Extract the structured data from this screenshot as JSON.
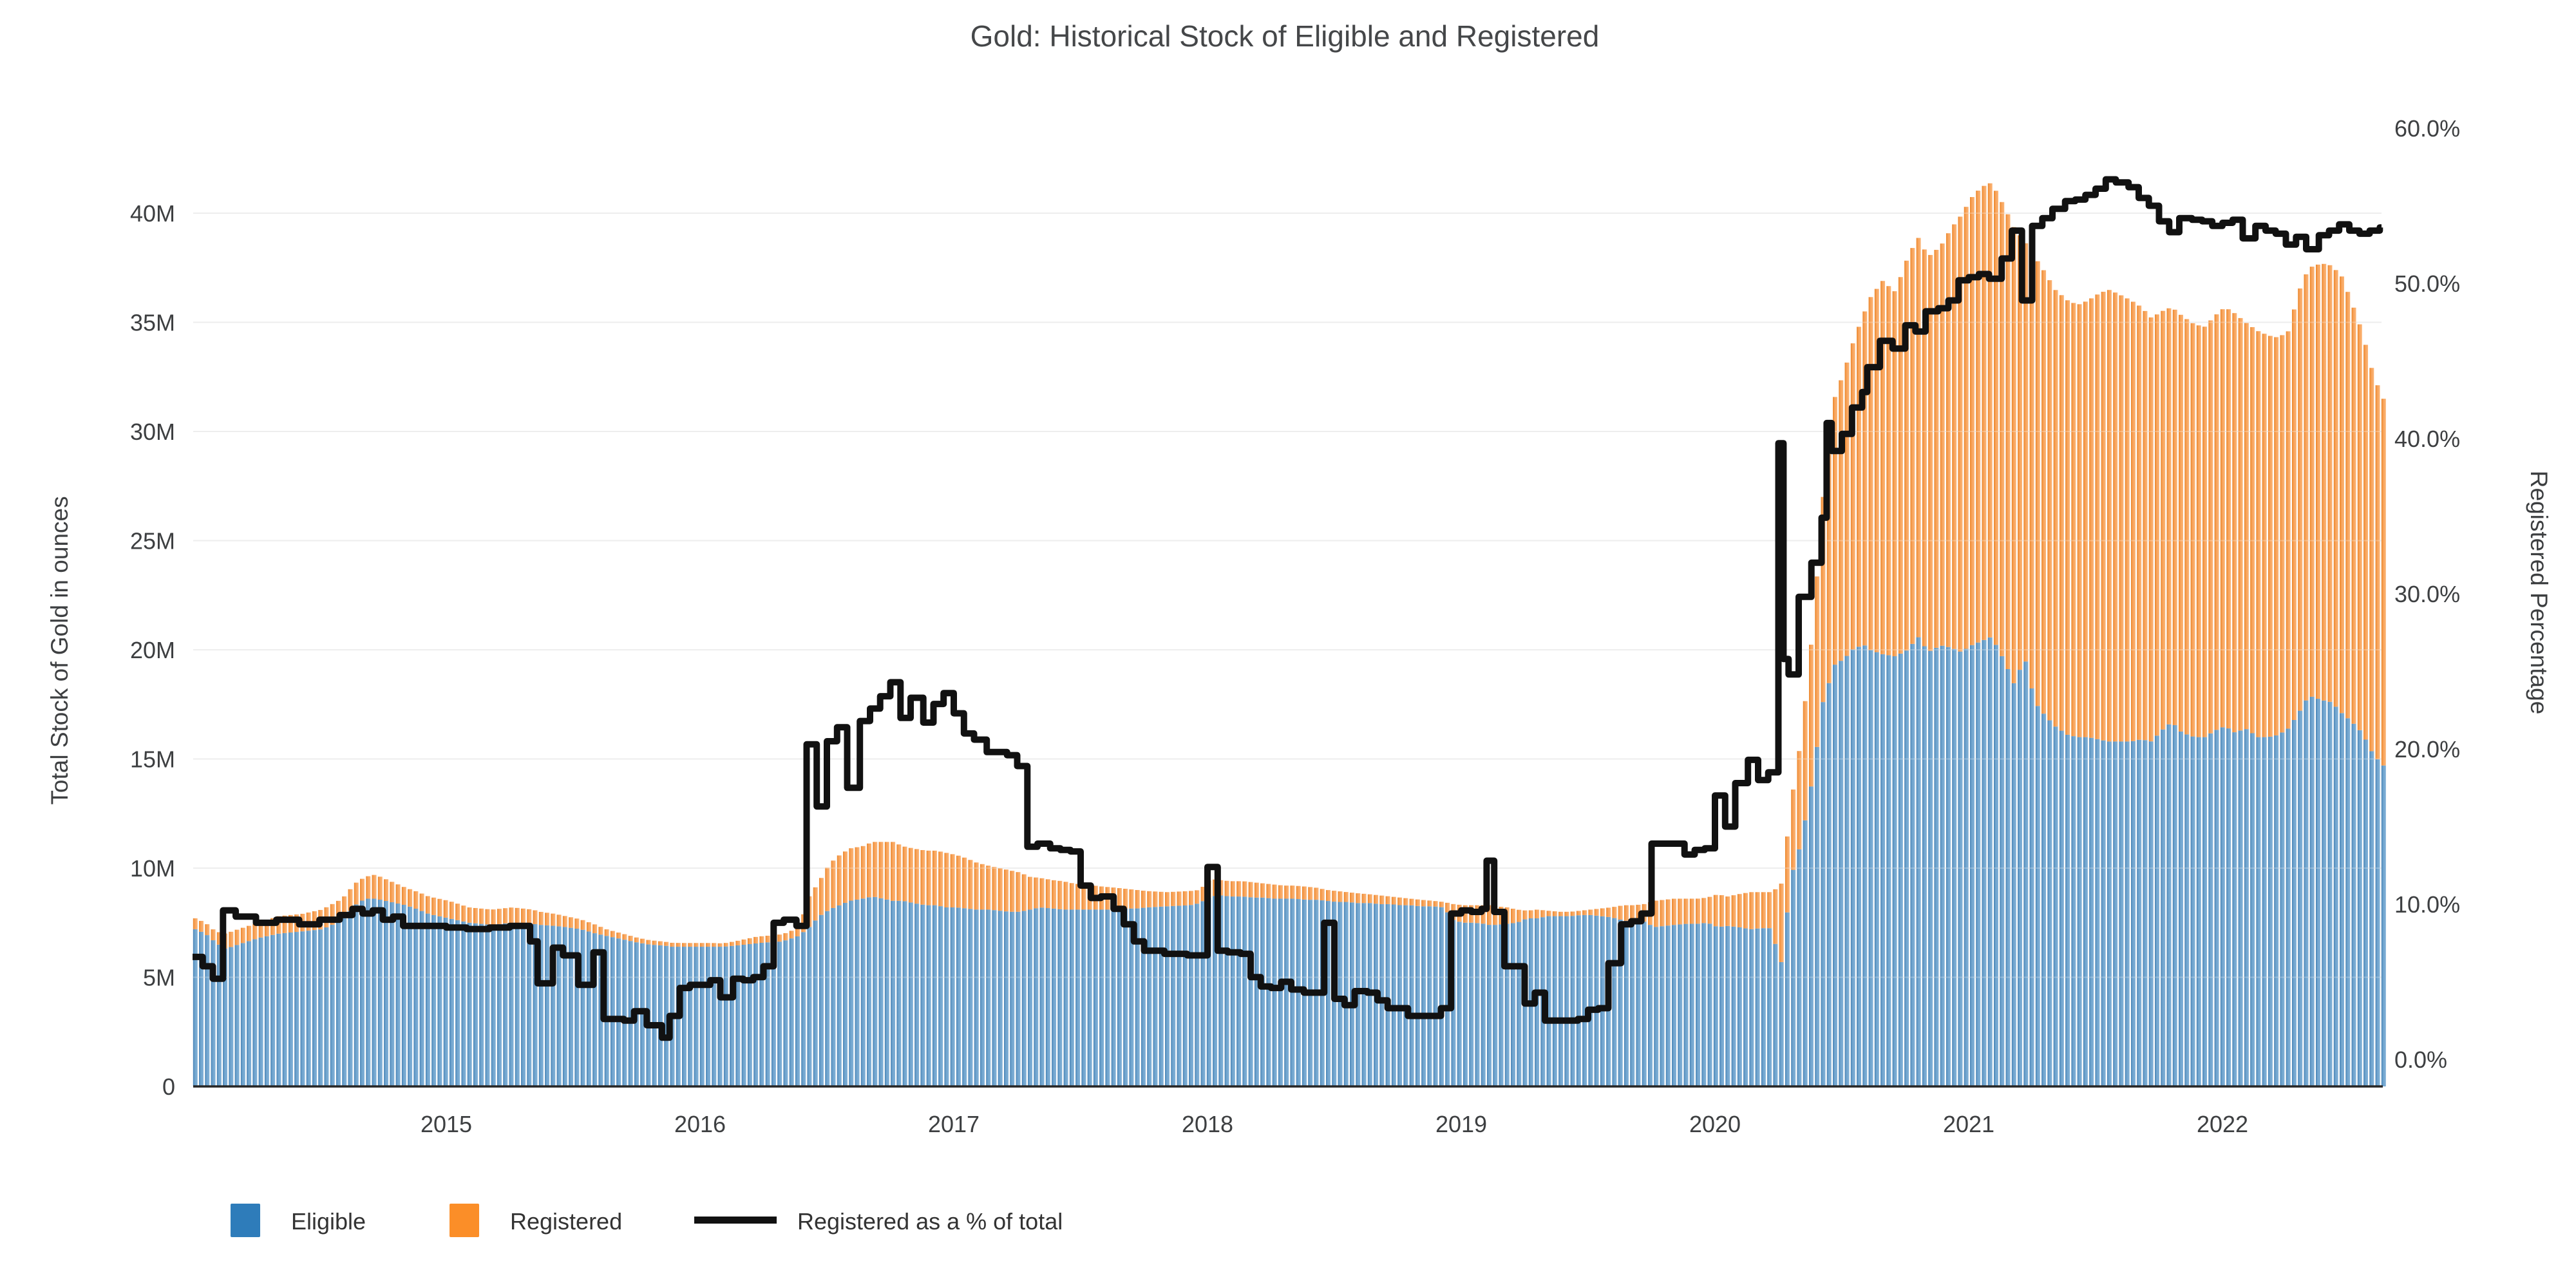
{
  "title": "Gold: Historical Stock of Eligible and Registered",
  "colors": {
    "eligible_bar_dark": "#437fb3",
    "eligible_bar_mid": "#6ea3cd",
    "eligible_bar_light": "#82b1d7",
    "registered_bar_dark": "#e98326",
    "registered_bar_mid": "#f7a055",
    "registered_bar_light": "#fbb679",
    "legend_eligible_swatch": "#2e7cba",
    "legend_registered_swatch": "#fb8e28",
    "line": "#111111",
    "grid": "#e9e9e9",
    "axis_line": "#262626",
    "title_text": "#454749",
    "tick_text": "#3d3f41"
  },
  "legend": {
    "items": [
      {
        "label": "Eligible"
      },
      {
        "label": "Registered"
      },
      {
        "label": "Registered as a % of total"
      }
    ]
  },
  "chart_data": {
    "type": "bar",
    "subtype": "stacked-bars-with-line",
    "title": "Gold: Historical Stock of Eligible and Registered",
    "ylabel_left": "Total Stock of Gold in ounces",
    "ylabel_right": "Registered Percentage",
    "xlabel": "",
    "grid": "horizontal-only",
    "legend_position": "bottom-left",
    "ylim_left_million_oz": [
      0,
      42.6
    ],
    "ylim_right_pct": [
      0,
      61.8
    ],
    "xlim_years": [
      2014.0,
      2022.66
    ],
    "left_ticks": {
      "labels": [
        "0",
        "5M",
        "10M",
        "15M",
        "20M",
        "25M",
        "30M",
        "35M",
        "40M"
      ],
      "values": [
        0,
        5,
        10,
        15,
        20,
        25,
        30,
        35,
        40
      ]
    },
    "right_ticks": {
      "labels": [
        "0.0%",
        "10.0%",
        "20.0%",
        "30.0%",
        "40.0%",
        "50.0%",
        "60.0%"
      ],
      "values": [
        0,
        10,
        20,
        30,
        40,
        50,
        60
      ]
    },
    "x_ticks": {
      "labels": [
        "2015",
        "2016",
        "2017",
        "2018",
        "2019",
        "2020",
        "2021",
        "2022"
      ],
      "values": [
        2015,
        2016,
        2017,
        2018,
        2019,
        2020,
        2021,
        2022
      ]
    },
    "x_unit": "decimal year (weekly bars)",
    "x": [
      2014.0,
      2014.04,
      2014.08,
      2014.12,
      2014.17,
      2014.25,
      2014.33,
      2014.42,
      2014.5,
      2014.58,
      2014.63,
      2014.67,
      2014.71,
      2014.75,
      2014.79,
      2014.83,
      2014.88,
      2014.92,
      2014.96,
      2015.0,
      2015.08,
      2015.17,
      2015.25,
      2015.33,
      2015.36,
      2015.42,
      2015.46,
      2015.52,
      2015.58,
      2015.62,
      2015.7,
      2015.74,
      2015.79,
      2015.85,
      2015.88,
      2015.92,
      2015.96,
      2016.04,
      2016.08,
      2016.13,
      2016.17,
      2016.21,
      2016.25,
      2016.29,
      2016.33,
      2016.38,
      2016.42,
      2016.46,
      2016.5,
      2016.54,
      2016.58,
      2016.63,
      2016.67,
      2016.71,
      2016.75,
      2016.79,
      2016.83,
      2016.88,
      2016.92,
      2016.96,
      2017.0,
      2017.04,
      2017.08,
      2017.13,
      2017.17,
      2017.21,
      2017.25,
      2017.29,
      2017.33,
      2017.38,
      2017.42,
      2017.46,
      2017.5,
      2017.54,
      2017.58,
      2017.63,
      2017.67,
      2017.71,
      2017.75,
      2017.83,
      2017.92,
      2017.96,
      2018.0,
      2018.04,
      2018.08,
      2018.13,
      2018.17,
      2018.21,
      2018.25,
      2018.29,
      2018.33,
      2018.38,
      2018.42,
      2018.46,
      2018.5,
      2018.54,
      2018.58,
      2018.63,
      2018.67,
      2018.71,
      2018.75,
      2018.79,
      2018.83,
      2018.88,
      2018.92,
      2018.96,
      2019.0,
      2019.04,
      2019.08,
      2019.1,
      2019.13,
      2019.17,
      2019.21,
      2019.25,
      2019.29,
      2019.33,
      2019.38,
      2019.42,
      2019.46,
      2019.5,
      2019.54,
      2019.58,
      2019.63,
      2019.67,
      2019.71,
      2019.75,
      2019.79,
      2019.83,
      2019.88,
      2019.92,
      2019.96,
      2020.0,
      2020.04,
      2020.08,
      2020.13,
      2020.17,
      2020.21,
      2020.25,
      2020.27,
      2020.29,
      2020.33,
      2020.38,
      2020.42,
      2020.44,
      2020.46,
      2020.5,
      2020.54,
      2020.58,
      2020.6,
      2020.65,
      2020.7,
      2020.75,
      2020.79,
      2020.83,
      2020.88,
      2020.92,
      2020.96,
      2021.0,
      2021.04,
      2021.08,
      2021.13,
      2021.17,
      2021.21,
      2021.25,
      2021.29,
      2021.33,
      2021.38,
      2021.42,
      2021.46,
      2021.5,
      2021.54,
      2021.58,
      2021.63,
      2021.67,
      2021.71,
      2021.75,
      2021.79,
      2021.83,
      2021.88,
      2021.92,
      2021.96,
      2022.0,
      2022.04,
      2022.08,
      2022.13,
      2022.17,
      2022.21,
      2022.25,
      2022.29,
      2022.33,
      2022.38,
      2022.42,
      2022.46,
      2022.5,
      2022.54,
      2022.58,
      2022.62
    ],
    "series": [
      {
        "name": "Eligible",
        "type": "bar",
        "axis": "left",
        "unit": "million oz",
        "values": [
          7.2,
          7.0,
          6.6,
          6.3,
          6.5,
          6.8,
          7.0,
          7.1,
          7.2,
          7.6,
          8.3,
          8.6,
          8.6,
          8.5,
          8.4,
          8.3,
          8.1,
          7.9,
          7.8,
          7.7,
          7.5,
          7.4,
          7.5,
          7.45,
          7.4,
          7.35,
          7.3,
          7.2,
          7.0,
          6.9,
          6.7,
          6.6,
          6.5,
          6.45,
          6.4,
          6.4,
          6.4,
          6.4,
          6.4,
          6.45,
          6.5,
          6.55,
          6.6,
          6.6,
          6.7,
          6.9,
          7.3,
          7.8,
          8.1,
          8.3,
          8.5,
          8.6,
          8.7,
          8.6,
          8.5,
          8.5,
          8.4,
          8.3,
          8.3,
          8.2,
          8.2,
          8.15,
          8.1,
          8.1,
          8.05,
          8.0,
          8.0,
          8.1,
          8.2,
          8.15,
          8.1,
          8.1,
          8.1,
          8.1,
          8.1,
          8.1,
          8.15,
          8.15,
          8.2,
          8.25,
          8.3,
          8.4,
          8.7,
          8.75,
          8.7,
          8.7,
          8.65,
          8.65,
          8.6,
          8.6,
          8.6,
          8.55,
          8.55,
          8.5,
          8.45,
          8.45,
          8.4,
          8.4,
          8.35,
          8.35,
          8.3,
          8.3,
          8.25,
          8.25,
          8.2,
          7.6,
          7.5,
          7.5,
          7.45,
          7.4,
          7.4,
          7.45,
          7.5,
          7.7,
          7.7,
          7.8,
          7.8,
          7.8,
          7.85,
          7.85,
          7.8,
          7.75,
          7.6,
          7.55,
          7.55,
          7.3,
          7.35,
          7.4,
          7.45,
          7.45,
          7.5,
          7.3,
          7.35,
          7.3,
          7.2,
          7.25,
          7.25,
          5.6,
          7.5,
          9.6,
          11.2,
          14.5,
          18.0,
          18.5,
          19.3,
          19.6,
          20.1,
          20.2,
          20.0,
          19.8,
          19.7,
          20.0,
          20.6,
          19.9,
          20.2,
          20.1,
          19.9,
          20.2,
          20.4,
          20.6,
          19.5,
          18.4,
          19.7,
          17.6,
          17.0,
          16.5,
          16.1,
          16.0,
          16.0,
          15.9,
          15.8,
          15.8,
          15.8,
          15.9,
          15.8,
          16.3,
          16.7,
          16.2,
          16.0,
          16.0,
          16.3,
          16.5,
          16.2,
          16.4,
          16.0,
          16.0,
          16.1,
          16.4,
          17.1,
          17.9,
          17.7,
          17.6,
          17.1,
          16.7,
          16.2,
          15.3,
          14.7
        ]
      },
      {
        "name": "Registered",
        "type": "bar",
        "axis": "left",
        "unit": "million oz",
        "values": [
          0.5,
          0.5,
          0.5,
          0.7,
          0.7,
          0.7,
          0.8,
          0.8,
          0.9,
          1.0,
          1.0,
          1.0,
          1.1,
          1.0,
          0.9,
          0.8,
          0.8,
          0.8,
          0.8,
          0.8,
          0.7,
          0.7,
          0.7,
          0.65,
          0.6,
          0.55,
          0.5,
          0.45,
          0.4,
          0.3,
          0.25,
          0.22,
          0.2,
          0.18,
          0.18,
          0.17,
          0.17,
          0.17,
          0.15,
          0.2,
          0.25,
          0.3,
          0.3,
          0.32,
          0.33,
          0.38,
          1.4,
          1.6,
          2.1,
          2.3,
          2.4,
          2.4,
          2.5,
          2.6,
          2.7,
          2.5,
          2.5,
          2.5,
          2.5,
          2.5,
          2.4,
          2.3,
          2.15,
          2.0,
          1.95,
          1.9,
          1.8,
          1.5,
          1.35,
          1.3,
          1.3,
          1.2,
          1.15,
          1.1,
          1.05,
          1.0,
          0.9,
          0.85,
          0.75,
          0.65,
          0.65,
          0.6,
          0.8,
          0.7,
          0.7,
          0.7,
          0.7,
          0.65,
          0.65,
          0.6,
          0.6,
          0.6,
          0.55,
          0.5,
          0.5,
          0.45,
          0.45,
          0.4,
          0.4,
          0.35,
          0.35,
          0.3,
          0.3,
          0.25,
          0.25,
          0.75,
          0.8,
          0.8,
          0.85,
          0.9,
          0.85,
          0.75,
          0.6,
          0.35,
          0.4,
          0.25,
          0.2,
          0.2,
          0.2,
          0.25,
          0.35,
          0.45,
          0.7,
          0.75,
          0.8,
          1.2,
          1.2,
          1.2,
          1.15,
          1.15,
          1.15,
          1.5,
          1.35,
          1.5,
          1.7,
          1.65,
          1.65,
          3.6,
          3.5,
          3.4,
          4.8,
          7.0,
          9.7,
          11.5,
          12.2,
          13.2,
          14.2,
          15.3,
          16.1,
          17.1,
          16.7,
          18.0,
          18.3,
          18.1,
          18.3,
          19.2,
          20.0,
          20.5,
          20.8,
          20.8,
          20.8,
          20.9,
          19.0,
          20.4,
          20.3,
          20.0,
          19.9,
          19.8,
          20.0,
          20.4,
          20.7,
          20.5,
          20.2,
          19.8,
          19.4,
          19.2,
          19.0,
          19.1,
          18.9,
          18.8,
          19.0,
          19.2,
          19.2,
          18.6,
          18.6,
          18.4,
          18.2,
          18.2,
          19.3,
          19.6,
          20.0,
          20.0,
          20.0,
          19.2,
          18.4,
          17.5,
          16.8
        ]
      },
      {
        "name": "Registered as a % of total",
        "type": "line",
        "axis": "right",
        "unit": "%",
        "values": [
          6.6,
          6.0,
          5.2,
          9.6,
          9.2,
          8.8,
          9.0,
          8.7,
          9.0,
          9.3,
          9.7,
          9.4,
          9.6,
          9.0,
          9.2,
          8.6,
          8.6,
          8.6,
          8.6,
          8.5,
          8.4,
          8.5,
          8.6,
          7.6,
          4.9,
          7.2,
          6.7,
          4.8,
          6.9,
          2.6,
          2.5,
          3.1,
          2.2,
          1.4,
          2.8,
          4.6,
          4.8,
          5.1,
          4.0,
          5.2,
          5.1,
          5.3,
          6.0,
          8.8,
          9.0,
          8.6,
          20.3,
          16.3,
          20.5,
          21.4,
          17.5,
          21.8,
          22.6,
          23.4,
          24.3,
          22.0,
          23.3,
          21.7,
          22.9,
          23.6,
          22.3,
          21.0,
          20.6,
          19.8,
          19.8,
          19.6,
          18.9,
          13.7,
          13.9,
          13.6,
          13.5,
          13.4,
          11.2,
          10.4,
          10.5,
          9.7,
          8.7,
          7.6,
          7.0,
          6.8,
          6.7,
          6.7,
          12.4,
          7.0,
          6.9,
          6.8,
          5.3,
          4.7,
          4.6,
          5.0,
          4.5,
          4.3,
          4.3,
          8.8,
          3.9,
          3.5,
          4.4,
          4.3,
          3.8,
          3.3,
          3.3,
          2.8,
          2.8,
          2.8,
          3.3,
          9.4,
          9.6,
          9.5,
          9.7,
          12.8,
          9.5,
          6.0,
          6.0,
          3.6,
          4.3,
          2.5,
          2.5,
          2.5,
          2.6,
          3.2,
          3.3,
          6.2,
          8.7,
          8.9,
          9.4,
          13.9,
          13.9,
          13.9,
          13.2,
          13.5,
          13.6,
          17.0,
          15.0,
          17.8,
          19.3,
          18.0,
          18.5,
          39.7,
          25.8,
          24.8,
          29.8,
          32.0,
          34.9,
          41.0,
          39.2,
          40.3,
          42.0,
          43.0,
          44.6,
          46.3,
          45.8,
          47.3,
          46.9,
          48.2,
          48.4,
          48.9,
          50.2,
          50.4,
          50.6,
          50.3,
          51.6,
          53.4,
          48.9,
          53.7,
          54.2,
          54.8,
          55.3,
          55.4,
          55.7,
          56.1,
          56.7,
          56.5,
          56.2,
          55.5,
          55.0,
          54.0,
          53.3,
          54.2,
          54.1,
          54.0,
          53.7,
          53.9,
          54.1,
          52.9,
          53.7,
          53.4,
          53.2,
          52.5,
          53.0,
          52.2,
          53.1,
          53.4,
          53.8,
          53.4,
          53.2,
          53.4,
          53.6
        ]
      }
    ]
  }
}
